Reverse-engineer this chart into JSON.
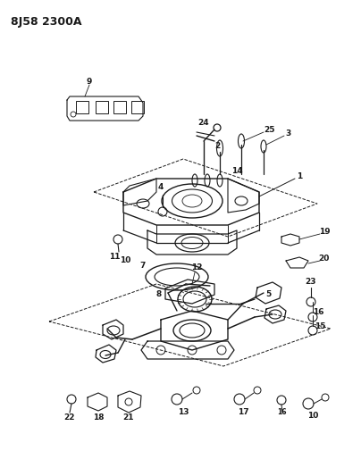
{
  "title": "8J58 2300A",
  "bg_color": "#ffffff",
  "text_color": "#1a1a1a",
  "figsize": [
    4.04,
    5.33
  ],
  "dpi": 100,
  "lw_main": 0.9,
  "lw_thin": 0.6,
  "lw_thick": 1.1
}
